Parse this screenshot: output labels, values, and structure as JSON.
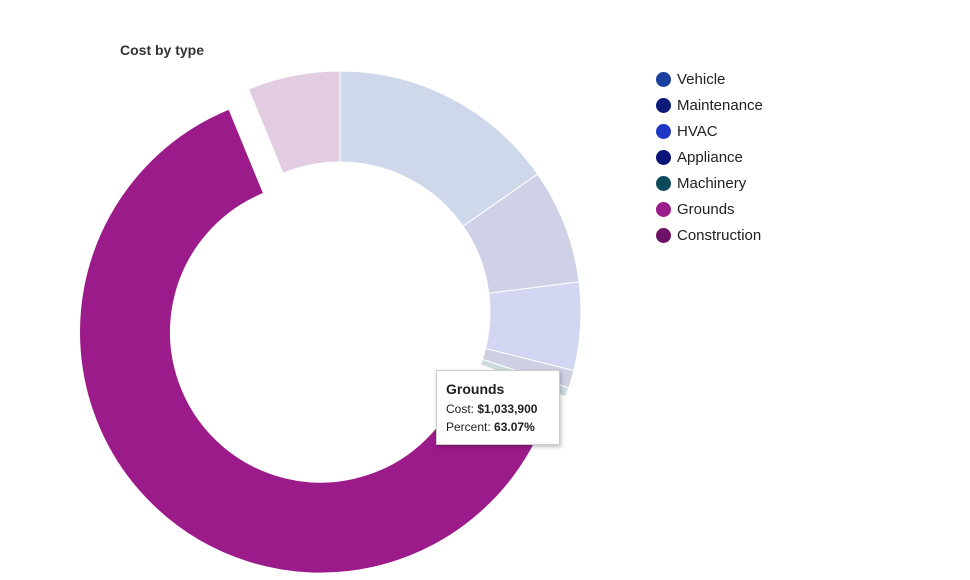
{
  "chart_data": {
    "type": "pie",
    "title": "Cost by type",
    "hole": true,
    "categories": [
      "Vehicle",
      "Maintenance",
      "HVAC",
      "Appliance",
      "Machinery",
      "Grounds",
      "Construction"
    ],
    "values": [
      15.3,
      7.7,
      5.9,
      1.2,
      0.6,
      63.07,
      6.2
    ],
    "value_unit": "percent",
    "colors": [
      "#1a3fa0",
      "#0e1a7a",
      "#1e35c5",
      "#0b1478",
      "#0b4a5c",
      "#9c1b8a",
      "#6b1268"
    ],
    "slice_colors": [
      "#cfd8ea",
      "#cfd1e7",
      "#d2d6f2",
      "#cdd0e3",
      "#cddadd",
      "#9c1b8a",
      "#e1cce2"
    ],
    "highlighted": "Grounds",
    "legend_position": "right"
  },
  "legend": {
    "items": [
      {
        "label": "Vehicle",
        "color": "#1a3fa0"
      },
      {
        "label": "Maintenance",
        "color": "#0e1a7a"
      },
      {
        "label": "HVAC",
        "color": "#1e35c5"
      },
      {
        "label": "Appliance",
        "color": "#0b1478"
      },
      {
        "label": "Machinery",
        "color": "#0b4a5c"
      },
      {
        "label": "Grounds",
        "color": "#9c1b8a"
      },
      {
        "label": "Construction",
        "color": "#6b1268"
      }
    ]
  },
  "tooltip": {
    "title": "Grounds",
    "cost_label": "Cost:",
    "cost_value": "$1,033,900",
    "percent_label": "Percent:",
    "percent_value": "63.07%"
  }
}
